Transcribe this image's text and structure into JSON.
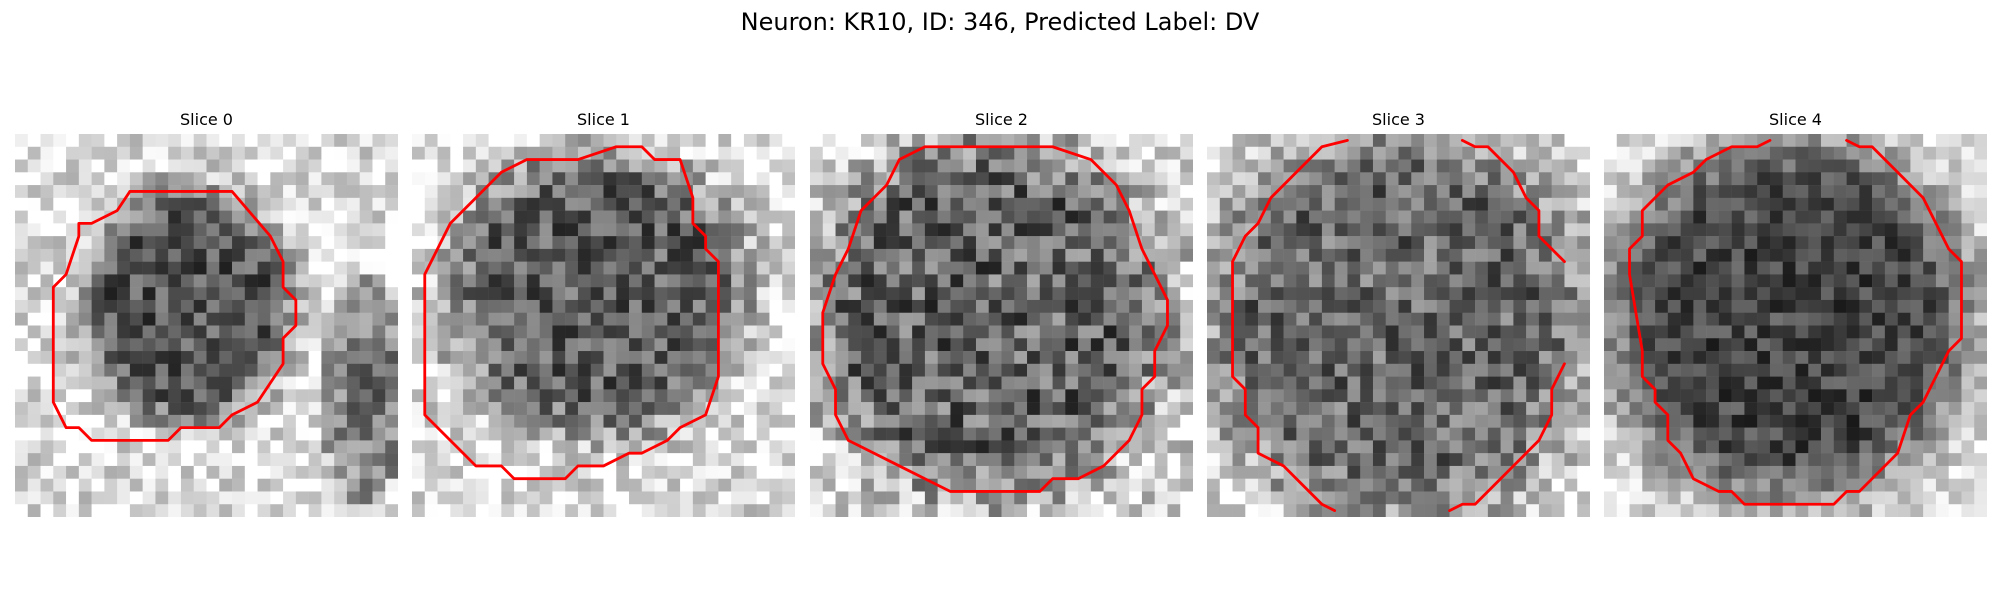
{
  "figure": {
    "title": "Neuron: KR10, ID: 346, Predicted Label: DV"
  },
  "panels": [
    {
      "title": "Slice 0",
      "image": "grayscale-em-patch-with-red-contour"
    },
    {
      "title": "Slice 1",
      "image": "grayscale-em-patch-with-red-contour"
    },
    {
      "title": "Slice 2",
      "image": "grayscale-em-patch-with-red-contour"
    },
    {
      "title": "Slice 3",
      "image": "grayscale-em-patch-with-red-contour"
    },
    {
      "title": "Slice 4",
      "image": "grayscale-em-patch-with-red-contour"
    }
  ],
  "colors": {
    "contour": "#ff0000",
    "background": "#ffffff"
  }
}
